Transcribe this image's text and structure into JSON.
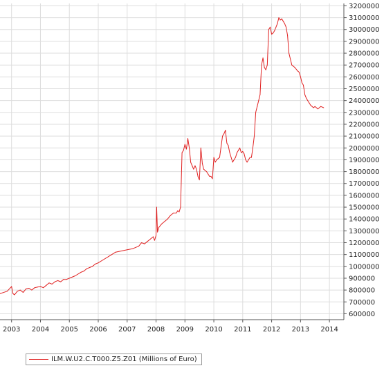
{
  "chart_data": {
    "type": "line",
    "title": "",
    "xlabel": "",
    "ylabel": "",
    "x_tick_labels": [
      "2003",
      "2004",
      "2005",
      "2006",
      "2007",
      "2008",
      "2009",
      "2010",
      "2011",
      "2012",
      "2013",
      "2014"
    ],
    "y_tick_labels": [
      "600000",
      "700000",
      "800000",
      "900000",
      "1000000",
      "1100000",
      "1200000",
      "1300000",
      "1400000",
      "1500000",
      "1600000",
      "1700000",
      "1800000",
      "1900000",
      "2000000",
      "2100000",
      "2200000",
      "2300000",
      "2400000",
      "2500000",
      "2600000",
      "2700000",
      "2800000",
      "2900000",
      "3000000",
      "3100000",
      "3200000"
    ],
    "xlim": [
      2002.6,
      2014.5
    ],
    "ylim": [
      550000,
      3220000
    ],
    "grid": true,
    "legend_position": "bottom-left",
    "colors": {
      "series": "#e02020",
      "grid": "#dddddd",
      "axis": "#555555"
    },
    "series": [
      {
        "name": "ILM.W.U2.C.T000.Z5.Z01 (Millions of Euro)",
        "x": [
          2002.6,
          2002.85,
          2003.0,
          2003.05,
          2003.1,
          2003.2,
          2003.3,
          2003.4,
          2003.5,
          2003.6,
          2003.7,
          2003.8,
          2003.9,
          2004.0,
          2004.1,
          2004.2,
          2004.3,
          2004.4,
          2004.5,
          2004.6,
          2004.7,
          2004.8,
          2004.9,
          2005.0,
          2005.2,
          2005.4,
          2005.5,
          2005.6,
          2005.7,
          2005.8,
          2005.9,
          2006.0,
          2006.2,
          2006.4,
          2006.6,
          2006.8,
          2007.0,
          2007.2,
          2007.4,
          2007.5,
          2007.6,
          2007.7,
          2007.8,
          2007.9,
          2007.95,
          2008.0,
          2008.02,
          2008.05,
          2008.1,
          2008.2,
          2008.3,
          2008.4,
          2008.5,
          2008.6,
          2008.7,
          2008.75,
          2008.8,
          2008.85,
          2008.9,
          2008.95,
          2009.0,
          2009.05,
          2009.1,
          2009.15,
          2009.2,
          2009.25,
          2009.3,
          2009.35,
          2009.4,
          2009.45,
          2009.5,
          2009.55,
          2009.6,
          2009.65,
          2009.7,
          2009.75,
          2009.8,
          2009.85,
          2009.9,
          2009.95,
          2010.0,
          2010.05,
          2010.1,
          2010.15,
          2010.2,
          2010.3,
          2010.35,
          2010.4,
          2010.45,
          2010.5,
          2010.55,
          2010.6,
          2010.65,
          2010.7,
          2010.75,
          2010.8,
          2010.85,
          2010.9,
          2010.95,
          2011.0,
          2011.05,
          2011.1,
          2011.15,
          2011.2,
          2011.25,
          2011.3,
          2011.35,
          2011.4,
          2011.45,
          2011.5,
          2011.55,
          2011.6,
          2011.65,
          2011.7,
          2011.75,
          2011.8,
          2011.85,
          2011.9,
          2011.95,
          2012.0,
          2012.05,
          2012.1,
          2012.15,
          2012.2,
          2012.25,
          2012.3,
          2012.35,
          2012.4,
          2012.45,
          2012.5,
          2012.55,
          2012.6,
          2012.7,
          2012.8,
          2012.9,
          2012.95,
          2013.0,
          2013.05,
          2013.1,
          2013.15,
          2013.2,
          2013.25,
          2013.3,
          2013.35,
          2013.4,
          2013.45,
          2013.5,
          2013.55,
          2013.6,
          2013.7,
          2013.8
        ],
        "values": [
          770000,
          790000,
          830000,
          770000,
          760000,
          790000,
          800000,
          780000,
          810000,
          815000,
          800000,
          820000,
          825000,
          830000,
          820000,
          840000,
          860000,
          850000,
          870000,
          880000,
          870000,
          890000,
          890000,
          900000,
          920000,
          950000,
          960000,
          980000,
          990000,
          1000000,
          1020000,
          1030000,
          1060000,
          1090000,
          1120000,
          1130000,
          1140000,
          1150000,
          1170000,
          1200000,
          1190000,
          1210000,
          1230000,
          1250000,
          1220000,
          1260000,
          1500000,
          1290000,
          1330000,
          1360000,
          1380000,
          1400000,
          1430000,
          1450000,
          1450000,
          1470000,
          1460000,
          1500000,
          1960000,
          1980000,
          2030000,
          1990000,
          2080000,
          2000000,
          1880000,
          1850000,
          1820000,
          1850000,
          1820000,
          1760000,
          1730000,
          2000000,
          1870000,
          1820000,
          1810000,
          1800000,
          1780000,
          1760000,
          1760000,
          1740000,
          1920000,
          1880000,
          1900000,
          1910000,
          1920000,
          2100000,
          2120000,
          2150000,
          2040000,
          2020000,
          1960000,
          1920000,
          1880000,
          1900000,
          1920000,
          1960000,
          1980000,
          2000000,
          1960000,
          1970000,
          1950000,
          1900000,
          1880000,
          1900000,
          1920000,
          1920000,
          2000000,
          2100000,
          2300000,
          2350000,
          2400000,
          2450000,
          2700000,
          2760000,
          2680000,
          2660000,
          2700000,
          3000000,
          3020000,
          2960000,
          2970000,
          2990000,
          3020000,
          3050000,
          3100000,
          3080000,
          3090000,
          3070000,
          3050000,
          3020000,
          2950000,
          2800000,
          2700000,
          2680000,
          2650000,
          2640000,
          2600000,
          2550000,
          2530000,
          2450000,
          2420000,
          2400000,
          2380000,
          2360000,
          2350000,
          2340000,
          2350000,
          2340000,
          2330000,
          2350000,
          2340000
        ]
      }
    ]
  }
}
